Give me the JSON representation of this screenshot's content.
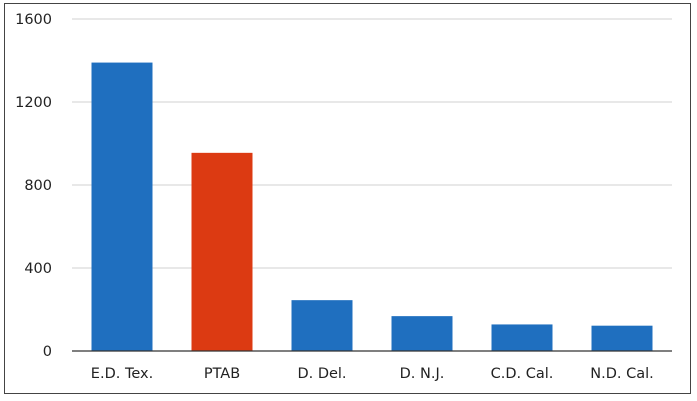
{
  "chart_data": {
    "type": "bar",
    "categories": [
      "E.D. Tex.",
      "PTAB",
      "D. Del.",
      "D. N.J.",
      "C.D. Cal.",
      "N.D. Cal."
    ],
    "values": [
      1390,
      955,
      245,
      168,
      128,
      122
    ],
    "colors": [
      "#1f6fbf",
      "#dc3a12",
      "#1f6fbf",
      "#1f6fbf",
      "#1f6fbf",
      "#1f6fbf"
    ],
    "title": "",
    "xlabel": "",
    "ylabel": "",
    "ylim": [
      0,
      1600
    ],
    "yticks": [
      0,
      400,
      800,
      1200,
      1600
    ],
    "ytick_labels": [
      "0",
      "400",
      "800",
      "1200",
      "1600"
    ],
    "grid": true
  }
}
